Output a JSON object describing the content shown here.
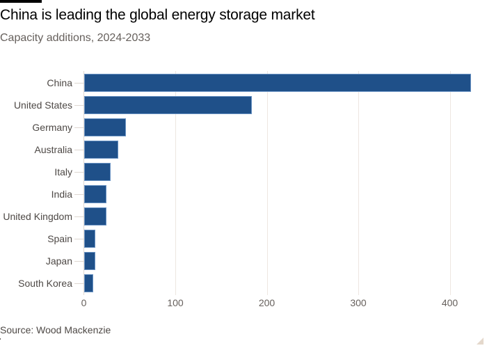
{
  "header": {
    "title": "China is leading the global energy storage market",
    "subtitle": "Capacity additions, 2024-2033"
  },
  "footer": {
    "source": "Source: Wood Mackenzie"
  },
  "colors": {
    "bar": "#1f5089",
    "bar_border": "#6b94c4",
    "gridline": "#ede6e1",
    "corner": "#e4d8cc"
  },
  "chart_data": {
    "type": "bar",
    "orientation": "horizontal",
    "title": "China is leading the global energy storage market",
    "subtitle": "Capacity additions, 2024-2033",
    "xlabel": "",
    "ylabel": "",
    "categories": [
      "China",
      "United States",
      "Germany",
      "Australia",
      "Italy",
      "India",
      "United Kingdom",
      "Spain",
      "Japan",
      "South Korea"
    ],
    "values": [
      423,
      183,
      46,
      37,
      29,
      24,
      24,
      12,
      12,
      10
    ],
    "xlim": [
      0,
      425
    ],
    "xticks": [
      "0",
      "100",
      "200",
      "300",
      "400"
    ],
    "grid": "vertical",
    "legend": "none",
    "source": "Source: Wood Mackenzie"
  }
}
